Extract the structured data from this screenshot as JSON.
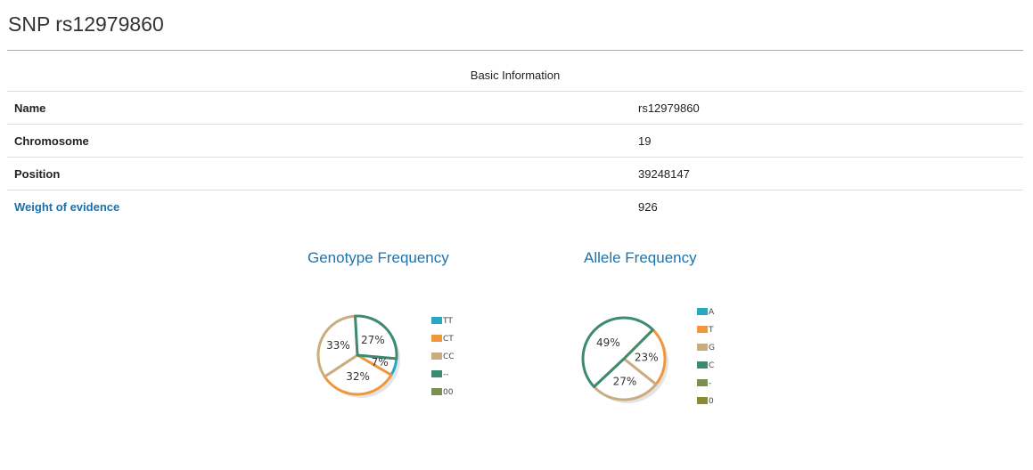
{
  "page": {
    "title": "SNP rs12979860"
  },
  "table": {
    "header": "Basic Information",
    "rows": [
      {
        "key": "Name",
        "value": "rs12979860",
        "link": false
      },
      {
        "key": "Chromosome",
        "value": "19",
        "link": false
      },
      {
        "key": "Position",
        "value": "39248147",
        "link": false
      },
      {
        "key": "Weight of evidence",
        "value": "926",
        "link": true
      }
    ]
  },
  "chart_data": [
    {
      "type": "pie",
      "title": "Genotype Frequency",
      "labels": [
        "TT",
        "CT",
        "CC",
        "--",
        "00"
      ],
      "values": [
        7,
        32,
        33,
        27,
        0
      ],
      "slice_labels": [
        "7%",
        "32%",
        "33%",
        "27%",
        ""
      ],
      "colors": [
        "#27a9c2",
        "#f0963d",
        "#c9ad7f",
        "#3e8a6e",
        "#7b8f50"
      ],
      "legend": "right"
    },
    {
      "type": "pie",
      "title": "Allele Frequency",
      "labels": [
        "A",
        "T",
        "G",
        "C",
        "-",
        "0"
      ],
      "values": [
        0,
        23,
        27,
        49,
        0,
        0
      ],
      "slice_labels": [
        "",
        "23%",
        "27%",
        "49%",
        "",
        ""
      ],
      "colors": [
        "#27a9c2",
        "#f0963d",
        "#c9ad7f",
        "#3e8a6e",
        "#7b8f50",
        "#8a8a2e"
      ],
      "legend": "right"
    }
  ]
}
